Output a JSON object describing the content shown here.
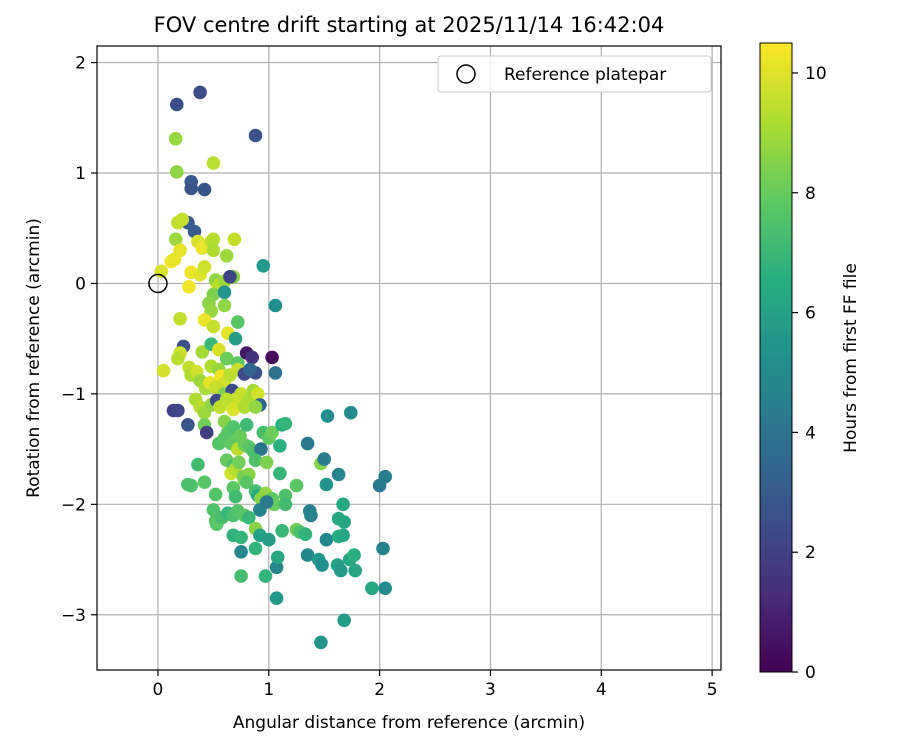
{
  "chart_data": {
    "type": "scatter",
    "title": "FOV centre drift starting at 2025/11/14 16:42:04",
    "xlabel": "Angular distance from reference (arcmin)",
    "ylabel": "Rotation from reference (arcmin)",
    "xlim": [
      -0.55,
      5.08
    ],
    "ylim": [
      -3.5,
      2.15
    ],
    "xticks": [
      0,
      1,
      2,
      3,
      4,
      5
    ],
    "yticks": [
      2,
      1,
      0,
      -1,
      -2,
      -3
    ],
    "xtick_labels": [
      "0",
      "1",
      "2",
      "3",
      "4",
      "5"
    ],
    "ytick_labels": [
      "2",
      "1",
      "0",
      "−1",
      "−2",
      "−3"
    ],
    "grid": true,
    "legend": {
      "placement": "top-right",
      "entries": [
        "Reference platepar"
      ]
    },
    "reference_point": {
      "x": 0,
      "y": 0,
      "label": "Reference platepar"
    },
    "colorbar": {
      "label": "Hours from first FF file",
      "colormap": "viridis",
      "range": [
        0,
        10.5
      ],
      "ticks": [
        0,
        2,
        4,
        6,
        8,
        10
      ],
      "tick_labels": [
        "0",
        "2",
        "4",
        "6",
        "8",
        "10"
      ]
    },
    "points": [
      [
        0.17,
        1.62,
        2.5
      ],
      [
        0.38,
        1.73,
        2.4
      ],
      [
        0.88,
        1.34,
        2.6
      ],
      [
        0.3,
        0.92,
        3.0
      ],
      [
        0.3,
        0.86,
        2.7
      ],
      [
        0.42,
        0.85,
        2.8
      ],
      [
        0.27,
        0.55,
        2.9
      ],
      [
        0.33,
        0.47,
        3.0
      ],
      [
        0.16,
        1.31,
        8.8
      ],
      [
        0.17,
        1.01,
        8.7
      ],
      [
        0.5,
        1.09,
        9.4
      ],
      [
        0.18,
        0.55,
        9.5
      ],
      [
        0.22,
        0.58,
        9.6
      ],
      [
        0.16,
        0.4,
        8.9
      ],
      [
        0.2,
        0.3,
        10.1
      ],
      [
        0.36,
        0.38,
        9.9
      ],
      [
        0.4,
        0.32,
        10.2
      ],
      [
        0.48,
        0.38,
        9.5
      ],
      [
        0.5,
        0.4,
        9.3
      ],
      [
        0.62,
        0.25,
        8.9
      ],
      [
        0.69,
        0.4,
        9.6
      ],
      [
        0.12,
        0.2,
        10.3
      ],
      [
        0.15,
        0.22,
        10.1
      ],
      [
        0.03,
        0.11,
        9.9
      ],
      [
        0.3,
        0.1,
        10.2
      ],
      [
        0.38,
        0.08,
        10.0
      ],
      [
        0.42,
        0.15,
        9.7
      ],
      [
        0.5,
        0.3,
        9.2
      ],
      [
        0.53,
        0.0,
        10.4
      ],
      [
        0.52,
        0.03,
        8.7
      ],
      [
        0.55,
        -0.02,
        9.4
      ],
      [
        0.68,
        0.06,
        8.6
      ],
      [
        0.6,
        0.02,
        8.9
      ],
      [
        0.65,
        0.06,
        2.2
      ],
      [
        0.95,
        0.16,
        5.6
      ],
      [
        0.5,
        -0.1,
        8.4
      ],
      [
        0.46,
        -0.18,
        8.6
      ],
      [
        0.48,
        -0.25,
        8.8
      ],
      [
        0.6,
        -0.08,
        5.4
      ],
      [
        0.6,
        -0.2,
        8.7
      ],
      [
        0.72,
        -0.35,
        7.7
      ],
      [
        1.06,
        -0.2,
        5.2
      ],
      [
        0.28,
        -0.03,
        10.3
      ],
      [
        0.42,
        -0.33,
        10.2
      ],
      [
        0.2,
        -0.32,
        9.5
      ],
      [
        0.5,
        -0.39,
        9.6
      ],
      [
        0.63,
        -0.45,
        10.1
      ],
      [
        0.7,
        -0.5,
        5.8
      ],
      [
        0.23,
        -0.57,
        2.6
      ],
      [
        0.2,
        -0.63,
        9.7
      ],
      [
        0.18,
        -0.68,
        9.4
      ],
      [
        0.4,
        -0.62,
        9.0
      ],
      [
        0.48,
        -0.55,
        7.0
      ],
      [
        0.55,
        -0.6,
        9.9
      ],
      [
        0.62,
        -0.68,
        8.1
      ],
      [
        0.72,
        -0.72,
        7.8
      ],
      [
        0.8,
        -0.63,
        0.7
      ],
      [
        0.85,
        -0.67,
        1.5
      ],
      [
        1.03,
        -0.67,
        0.3
      ],
      [
        0.05,
        -0.79,
        9.8
      ],
      [
        0.28,
        -0.76,
        9.5
      ],
      [
        0.3,
        -0.83,
        9.2
      ],
      [
        0.35,
        -0.8,
        9.8
      ],
      [
        0.48,
        -0.75,
        9.2
      ],
      [
        0.55,
        -0.78,
        8.8
      ],
      [
        0.57,
        -0.84,
        10.4
      ],
      [
        0.6,
        -0.9,
        9.8
      ],
      [
        0.65,
        -0.83,
        9.4
      ],
      [
        0.72,
        -0.78,
        9.6
      ],
      [
        0.78,
        -0.82,
        2.3
      ],
      [
        0.88,
        -0.81,
        2.6
      ],
      [
        0.83,
        -0.78,
        3.4
      ],
      [
        1.06,
        -0.81,
        3.9
      ],
      [
        0.38,
        -0.88,
        8.9
      ],
      [
        0.43,
        -0.95,
        9.1
      ],
      [
        0.47,
        -0.9,
        10.1
      ],
      [
        0.52,
        -0.94,
        9.6
      ],
      [
        0.6,
        -1.0,
        8.4
      ],
      [
        0.67,
        -0.97,
        2.4
      ],
      [
        0.7,
        -1.05,
        9.7
      ],
      [
        0.75,
        -1.0,
        9.6
      ],
      [
        0.82,
        -1.05,
        9.2
      ],
      [
        0.86,
        -0.97,
        9.0
      ],
      [
        0.9,
        -1.0,
        9.8
      ],
      [
        0.92,
        -1.1,
        3.4
      ],
      [
        0.34,
        -1.05,
        9.2
      ],
      [
        0.38,
        -1.12,
        9.4
      ],
      [
        0.42,
        -1.17,
        8.9
      ],
      [
        0.48,
        -1.1,
        8.7
      ],
      [
        0.53,
        -1.06,
        2.4
      ],
      [
        0.56,
        -1.12,
        9.5
      ],
      [
        0.62,
        -1.05,
        9.4
      ],
      [
        0.68,
        -1.14,
        9.9
      ],
      [
        0.78,
        -1.12,
        9.2
      ],
      [
        0.88,
        -1.12,
        8.7
      ],
      [
        0.14,
        -1.15,
        2.0
      ],
      [
        0.18,
        -1.15,
        2.2
      ],
      [
        0.27,
        -1.28,
        2.8
      ],
      [
        0.42,
        -1.28,
        8.2
      ],
      [
        0.44,
        -1.35,
        1.9
      ],
      [
        0.6,
        -1.25,
        8.6
      ],
      [
        0.63,
        -1.35,
        7.8
      ],
      [
        0.68,
        -1.3,
        7.5
      ],
      [
        0.74,
        -1.38,
        8.0
      ],
      [
        0.8,
        -1.28,
        7.1
      ],
      [
        0.95,
        -1.35,
        7.3
      ],
      [
        1.0,
        -1.4,
        7.9
      ],
      [
        1.03,
        -1.35,
        8.1
      ],
      [
        1.12,
        -1.28,
        6.5
      ],
      [
        1.15,
        -1.27,
        6.9
      ],
      [
        0.55,
        -1.45,
        7.6
      ],
      [
        0.6,
        -1.4,
        7.7
      ],
      [
        0.66,
        -1.45,
        7.9
      ],
      [
        0.72,
        -1.5,
        9.4
      ],
      [
        0.78,
        -1.46,
        8.1
      ],
      [
        0.82,
        -1.48,
        7.8
      ],
      [
        0.86,
        -1.52,
        7.5
      ],
      [
        0.93,
        -1.5,
        4.1
      ],
      [
        1.1,
        -1.47,
        6.6
      ],
      [
        1.35,
        -1.45,
        4.2
      ],
      [
        1.53,
        -1.2,
        5.1
      ],
      [
        1.74,
        -1.17,
        5.0
      ],
      [
        0.36,
        -1.64,
        7.2
      ],
      [
        0.62,
        -1.6,
        8.0
      ],
      [
        0.68,
        -1.65,
        7.4
      ],
      [
        0.66,
        -1.72,
        9.7
      ],
      [
        0.7,
        -1.68,
        9.3
      ],
      [
        0.73,
        -1.62,
        8.2
      ],
      [
        0.77,
        -1.75,
        8.3
      ],
      [
        0.82,
        -1.73,
        8.6
      ],
      [
        0.88,
        -1.6,
        7.5
      ],
      [
        0.98,
        -1.62,
        8.4
      ],
      [
        1.1,
        -1.72,
        7.0
      ],
      [
        1.47,
        -1.63,
        8.5
      ],
      [
        1.5,
        -1.59,
        4.3
      ],
      [
        1.63,
        -1.73,
        4.6
      ],
      [
        0.3,
        -1.83,
        7.6
      ],
      [
        0.27,
        -1.82,
        7.4
      ],
      [
        0.42,
        -1.8,
        7.7
      ],
      [
        0.52,
        -1.91,
        7.6
      ],
      [
        0.68,
        -1.85,
        7.8
      ],
      [
        0.7,
        -1.93,
        7.2
      ],
      [
        0.78,
        -1.78,
        8.4
      ],
      [
        0.8,
        -1.8,
        7.7
      ],
      [
        0.88,
        -1.88,
        7.3
      ],
      [
        0.9,
        -1.92,
        6.4
      ],
      [
        0.93,
        -1.95,
        8.6
      ],
      [
        0.97,
        -1.9,
        8.7
      ],
      [
        1.03,
        -1.95,
        7.8
      ],
      [
        1.05,
        -2.0,
        8.0
      ],
      [
        1.15,
        -1.92,
        7.5
      ],
      [
        1.25,
        -1.83,
        7.8
      ],
      [
        1.52,
        -1.82,
        5.4
      ],
      [
        2.0,
        -1.83,
        4.2
      ],
      [
        2.05,
        -1.75,
        4.4
      ],
      [
        0.5,
        -2.05,
        7.5
      ],
      [
        0.52,
        -2.15,
        7.6
      ],
      [
        0.53,
        -2.18,
        7.8
      ],
      [
        0.58,
        -2.12,
        7.3
      ],
      [
        0.63,
        -2.08,
        6.9
      ],
      [
        0.68,
        -2.1,
        7.4
      ],
      [
        0.72,
        -2.06,
        7.6
      ],
      [
        0.78,
        -2.1,
        7.8
      ],
      [
        0.82,
        -2.12,
        7.0
      ],
      [
        0.88,
        -2.22,
        8.6
      ],
      [
        0.92,
        -2.05,
        4.6
      ],
      [
        0.98,
        -1.98,
        4.3
      ],
      [
        1.15,
        -2.0,
        7.2
      ],
      [
        1.37,
        -2.06,
        4.5
      ],
      [
        1.38,
        -2.1,
        4.6
      ],
      [
        1.63,
        -2.13,
        6.3
      ],
      [
        1.67,
        -2.0,
        6.4
      ],
      [
        1.68,
        -2.16,
        6.2
      ],
      [
        0.68,
        -2.28,
        6.7
      ],
      [
        0.75,
        -2.43,
        4.8
      ],
      [
        0.75,
        -2.3,
        6.9
      ],
      [
        0.92,
        -2.28,
        6.0
      ],
      [
        0.88,
        -2.4,
        6.8
      ],
      [
        1.0,
        -2.32,
        5.8
      ],
      [
        1.12,
        -2.24,
        7.0
      ],
      [
        1.25,
        -2.23,
        8.2
      ],
      [
        1.28,
        -2.25,
        7.5
      ],
      [
        1.33,
        -2.27,
        6.8
      ],
      [
        1.52,
        -2.32,
        4.8
      ],
      [
        1.63,
        -2.29,
        6.5
      ],
      [
        1.67,
        -2.28,
        6.2
      ],
      [
        2.03,
        -2.4,
        4.6
      ],
      [
        0.75,
        -2.65,
        7.3
      ],
      [
        0.97,
        -2.65,
        6.8
      ],
      [
        1.07,
        -2.57,
        4.8
      ],
      [
        1.08,
        -2.48,
        6.3
      ],
      [
        1.35,
        -2.46,
        4.9
      ],
      [
        1.45,
        -2.5,
        5.6
      ],
      [
        1.48,
        -2.55,
        5.2
      ],
      [
        1.62,
        -2.55,
        6.0
      ],
      [
        1.65,
        -2.6,
        5.7
      ],
      [
        1.73,
        -2.5,
        6.2
      ],
      [
        1.77,
        -2.46,
        6.6
      ],
      [
        1.78,
        -2.6,
        6.1
      ],
      [
        1.93,
        -2.76,
        6.3
      ],
      [
        2.05,
        -2.76,
        5.1
      ],
      [
        1.07,
        -2.85,
        5.6
      ],
      [
        1.68,
        -3.05,
        5.8
      ],
      [
        1.47,
        -3.25,
        5.4
      ]
    ]
  }
}
